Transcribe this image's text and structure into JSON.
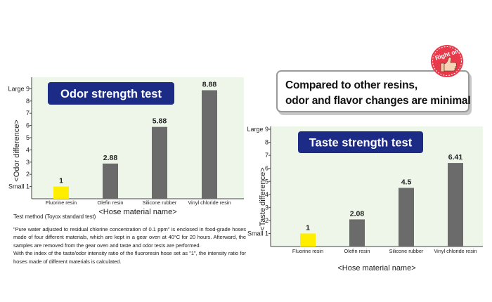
{
  "callout": {
    "line1": "Compared to other resins,",
    "line2": "odor and flavor changes are minimal"
  },
  "badge": {
    "text": "Right on!"
  },
  "test_method": {
    "heading": "Test method (Toyox standard test)",
    "para1": "\"Pure water adjusted to residual chlorine concentration of 0.1 ppm\" is enclosed in food-grade hoses made of four different materials, which are kept in a gear oven at 40°C for 20 hours. Afterward, the samples are removed from the gear oven and taste and odor tests are performed.",
    "para2": "With the index of the taste/odor intensity ratio of the fluororesin hose set as \"1\", the intensity ratio for hoses made of different materials is calculated."
  },
  "colors": {
    "highlight": "#ffee00",
    "bar": "#6b6b6b",
    "plot_bg": "#eef6ea",
    "title_box": "#1c2c86"
  },
  "chart_data": [
    {
      "type": "bar",
      "title": "Odor strength test",
      "ylabel": "<Odor difference>",
      "xlabel": "<Hose material name>",
      "categories": [
        "Fluorine resin",
        "Olefin resin",
        "Silicone rubber",
        "Vinyl chloride resin"
      ],
      "values": [
        1,
        2.88,
        5.88,
        8.88
      ],
      "value_labels": [
        "1",
        "2.88",
        "5.88",
        "8.88"
      ],
      "ylim": [
        0,
        9
      ],
      "yticks": [
        "Small 1",
        "2",
        "3",
        "4",
        "5",
        "6",
        "7",
        "8",
        "Large 9"
      ],
      "grid": false
    },
    {
      "type": "bar",
      "title": "Taste strength test",
      "ylabel": "<Taste difference>",
      "xlabel": "<Hose material name>",
      "categories": [
        "Fluorine resin",
        "Olefin resin",
        "Silicone rubber",
        "Vinyl chloride resin"
      ],
      "values": [
        1,
        2.08,
        4.5,
        6.41
      ],
      "value_labels": [
        "1",
        "2.08",
        "4.5",
        "6.41"
      ],
      "ylim": [
        0,
        9
      ],
      "yticks": [
        "Small 1",
        "2",
        "3",
        "4",
        "5",
        "6",
        "7",
        "8",
        "Large 9"
      ],
      "grid": false
    }
  ]
}
